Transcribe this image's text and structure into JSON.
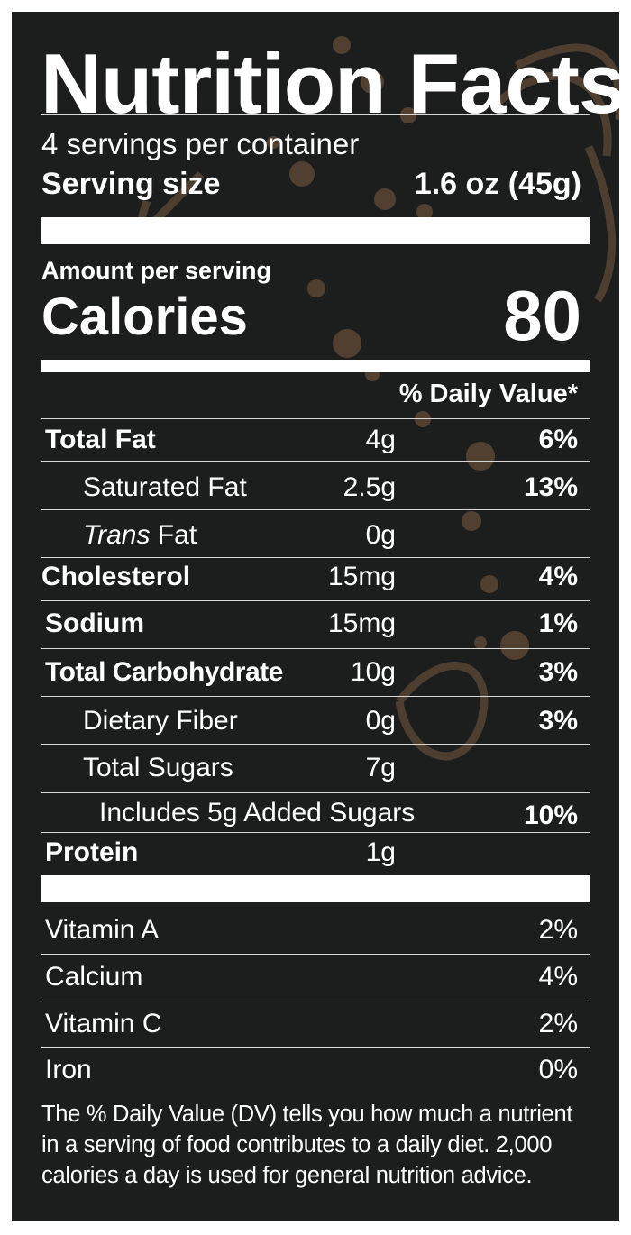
{
  "title": "Nutrition Facts",
  "servings_per_container": "4 servings per container",
  "serving_size_label": "Serving size",
  "serving_size_value": "1.6 oz (45g)",
  "amount_per_serving": "Amount per serving",
  "calories_label": "Calories",
  "calories_value": "80",
  "daily_value_header": "% Daily Value*",
  "nutrients": [
    {
      "name": "Total Fat",
      "amount": "4g",
      "dv": "6%"
    },
    {
      "name": "Saturated Fat",
      "amount": "2.5g",
      "dv": "13%"
    },
    {
      "name_italic": "Trans",
      "name": " Fat",
      "amount": "0g",
      "dv": ""
    },
    {
      "name": "Cholesterol",
      "amount": "15mg",
      "dv": "4%"
    },
    {
      "name": "Sodium",
      "amount": "15mg",
      "dv": "1%"
    },
    {
      "name": "Total Carbohydrate",
      "amount": "10g",
      "dv": "3%"
    },
    {
      "name": "Dietary Fiber",
      "amount": "0g",
      "dv": "3%"
    },
    {
      "name": "Total Sugars",
      "amount": "7g",
      "dv": ""
    },
    {
      "name": "Includes 5g Added Sugars",
      "amount": "",
      "dv": "10%"
    },
    {
      "name": "Protein",
      "amount": "1g",
      "dv": ""
    }
  ],
  "vitamins": [
    {
      "name": "Vitamin A",
      "dv": "2%"
    },
    {
      "name": "Calcium",
      "dv": "4%"
    },
    {
      "name": "Vitamin C",
      "dv": "2%"
    },
    {
      "name": "Iron",
      "dv": "0%"
    }
  ],
  "footnote": [
    "The % Daily Value (DV) tells you how much a nutrient",
    "in a serving of food contributes to a daily diet. 2,000",
    "calories a day is used for general nutrition advice."
  ],
  "colors": {
    "background": "#1c1e1e",
    "text": "#ffffff",
    "decoration": "#5a4634"
  }
}
